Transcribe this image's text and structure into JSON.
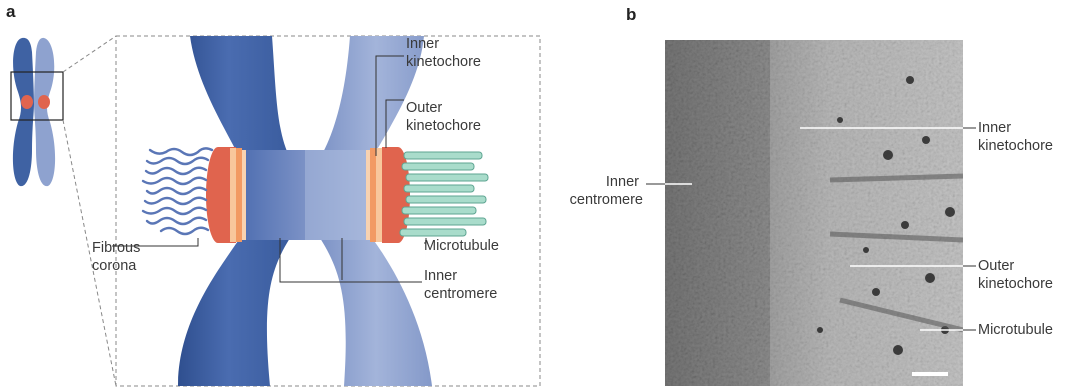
{
  "panel_a": {
    "letter": "a",
    "labels": {
      "inner_kinetochore": [
        "Inner",
        "kinetochore"
      ],
      "outer_kinetochore": [
        "Outer",
        "kinetochore"
      ],
      "fibrous_corona": [
        "Fibrous",
        "corona"
      ],
      "microtubule": "Microtubule",
      "inner_centromere": [
        "Inner",
        "centromere"
      ]
    }
  },
  "panel_b": {
    "letter": "b",
    "labels": {
      "inner_centromere": [
        "Inner",
        "centromere"
      ],
      "inner_kinetochore": [
        "Inner",
        "kinetochore"
      ],
      "outer_kinetochore": [
        "Outer",
        "kinetochore"
      ],
      "microtubule": "Microtubule"
    }
  },
  "colors": {
    "chromatid_dark": "#3f62a3",
    "chromatid_light": "#8a9fcd",
    "kinetochore_red": "#e0644e",
    "kinetochore_orange": "#f5b07a",
    "microtubule": "#9fd4c4",
    "corona": "#5a76b6"
  }
}
